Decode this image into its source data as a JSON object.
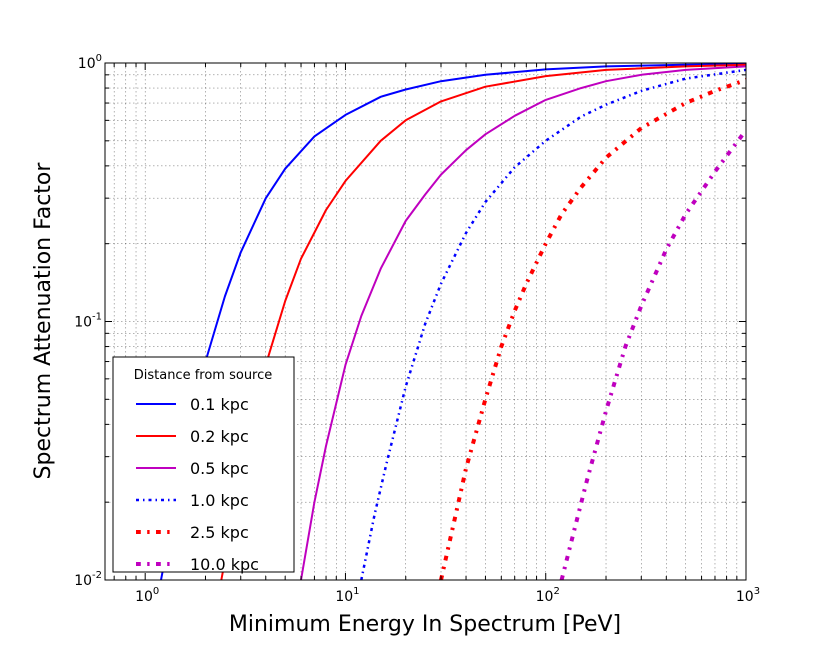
{
  "chart_data": {
    "type": "line",
    "xlabel": "Minimum Energy In Spectrum [PeV]",
    "ylabel": "Spectrum Attenuation Factor",
    "xscale": "log",
    "yscale": "log",
    "xlim": [
      0.63,
      1000
    ],
    "ylim": [
      0.01,
      1
    ],
    "grid": true,
    "x_ticks": [
      {
        "base": "10",
        "exp": "0",
        "value": 1
      },
      {
        "base": "10",
        "exp": "1",
        "value": 10
      },
      {
        "base": "10",
        "exp": "2",
        "value": 100
      },
      {
        "base": "10",
        "exp": "3",
        "value": 1000
      }
    ],
    "y_ticks": [
      {
        "base": "10",
        "exp": "-2",
        "value": 0.01
      },
      {
        "base": "10",
        "exp": "-1",
        "value": 0.1
      },
      {
        "base": "10",
        "exp": "0",
        "value": 1
      }
    ],
    "legend": {
      "title": "Distance from source",
      "placement": "lower-left"
    },
    "series": [
      {
        "name": "0.1 kpc",
        "color": "#0000ff",
        "style": "solid",
        "x": [
          1.2,
          1.5,
          2,
          2.5,
          3,
          4,
          5,
          7,
          10,
          15,
          20,
          30,
          50,
          100,
          200,
          500,
          1000
        ],
        "y": [
          0.01,
          0.025,
          0.07,
          0.125,
          0.185,
          0.3,
          0.39,
          0.52,
          0.63,
          0.74,
          0.79,
          0.85,
          0.9,
          0.945,
          0.97,
          0.985,
          0.99
        ]
      },
      {
        "name": "0.2 kpc",
        "color": "#ff0000",
        "style": "solid",
        "x": [
          2.4,
          3,
          4,
          5,
          6,
          8,
          10,
          15,
          20,
          30,
          50,
          100,
          200,
          500,
          1000
        ],
        "y": [
          0.01,
          0.025,
          0.068,
          0.12,
          0.175,
          0.27,
          0.35,
          0.5,
          0.6,
          0.71,
          0.81,
          0.89,
          0.94,
          0.97,
          0.985
        ]
      },
      {
        "name": "0.5 kpc",
        "color": "#bf00bf",
        "style": "solid",
        "x": [
          6,
          7,
          8,
          10,
          12,
          15,
          20,
          25,
          30,
          40,
          50,
          70,
          100,
          150,
          200,
          300,
          500,
          1000
        ],
        "y": [
          0.01,
          0.02,
          0.033,
          0.068,
          0.105,
          0.16,
          0.245,
          0.31,
          0.37,
          0.46,
          0.53,
          0.625,
          0.72,
          0.8,
          0.85,
          0.9,
          0.94,
          0.97
        ]
      },
      {
        "name": "1.0 kpc",
        "color": "#0000ff",
        "style": "dashdot",
        "width": 2.5,
        "x": [
          12,
          14,
          16,
          20,
          25,
          30,
          40,
          50,
          70,
          100,
          150,
          200,
          300,
          500,
          1000
        ],
        "y": [
          0.01,
          0.018,
          0.028,
          0.056,
          0.098,
          0.14,
          0.22,
          0.29,
          0.395,
          0.5,
          0.62,
          0.69,
          0.78,
          0.87,
          0.94
        ]
      },
      {
        "name": "2.5 kpc",
        "color": "#ff0000",
        "style": "dashdot",
        "width": 4,
        "x": [
          30,
          35,
          40,
          50,
          60,
          70,
          80,
          100,
          120,
          150,
          200,
          300,
          500,
          700,
          1000
        ],
        "y": [
          0.01,
          0.017,
          0.027,
          0.05,
          0.08,
          0.11,
          0.14,
          0.2,
          0.26,
          0.33,
          0.43,
          0.56,
          0.7,
          0.78,
          0.86
        ]
      },
      {
        "name": "10.0 kpc",
        "color": "#bf00bf",
        "style": "dashdot",
        "width": 4,
        "x": [
          120,
          140,
          160,
          200,
          250,
          300,
          400,
          500,
          700,
          1000
        ],
        "y": [
          0.01,
          0.016,
          0.024,
          0.045,
          0.08,
          0.115,
          0.19,
          0.26,
          0.38,
          0.55
        ]
      }
    ]
  }
}
